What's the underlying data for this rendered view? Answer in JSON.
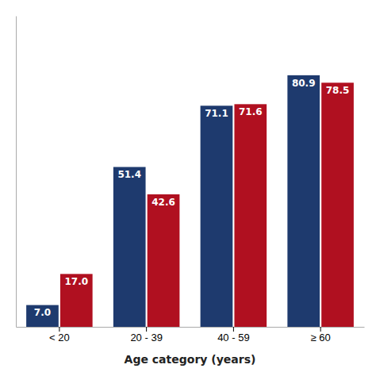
{
  "chart_data": {
    "type": "bar",
    "categories": [
      "< 20",
      "20 - 39",
      "40 - 59",
      "≥ 60"
    ],
    "series": [
      {
        "color": "#1e3a6e",
        "values": [
          7.0,
          51.4,
          71.1,
          80.9
        ],
        "value_labels": [
          "7.0",
          "51.4",
          "71.1",
          "80.9"
        ]
      },
      {
        "color": "#b01020",
        "values": [
          17.0,
          42.6,
          71.6,
          78.5
        ],
        "value_labels": [
          "17.0",
          "42.6",
          "71.6",
          "78.5"
        ]
      }
    ],
    "xlabel": "Age category (years)",
    "ylim": [
      0,
      100
    ],
    "yticks": [],
    "grid": false,
    "data_labels": true,
    "tick_labels": "x"
  }
}
